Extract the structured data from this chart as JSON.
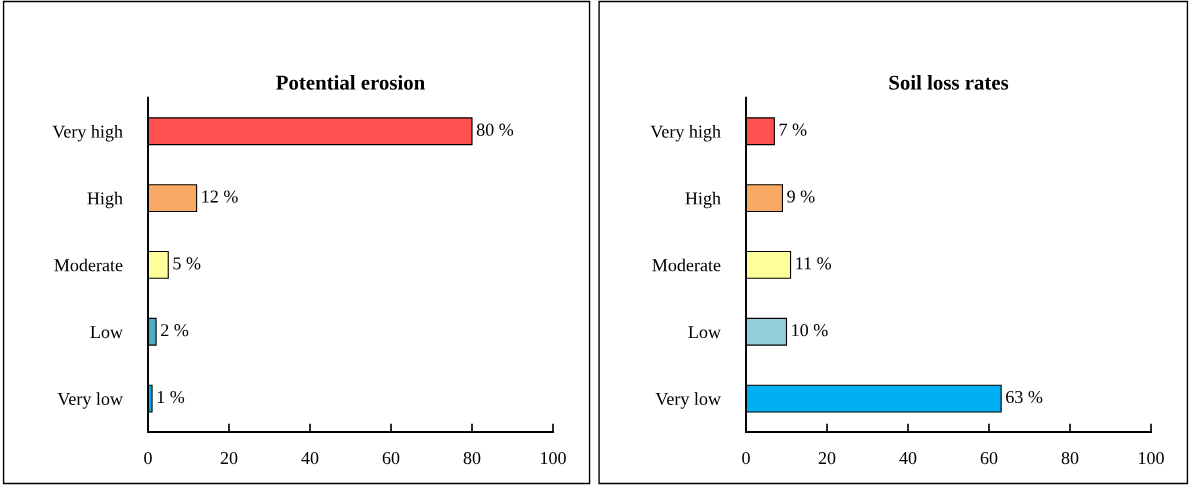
{
  "chart_data": [
    {
      "type": "bar",
      "orientation": "horizontal",
      "title": "Potential erosion",
      "categories": [
        "Very high",
        "High",
        "Moderate",
        "Low",
        "Very low"
      ],
      "values": [
        80,
        12,
        5,
        2,
        1
      ],
      "colors": [
        "#ff5050",
        "#f8a964",
        "#ffff99",
        "#4bacc6",
        "#00b0f0"
      ],
      "value_labels": [
        "80 %",
        "12 %",
        "5 %",
        "2 %",
        "1 %"
      ],
      "xlim": [
        0,
        100
      ],
      "xticks": [
        0,
        20,
        40,
        60,
        80,
        100
      ]
    },
    {
      "type": "bar",
      "orientation": "horizontal",
      "title": "Soil loss rates",
      "categories": [
        "Very high",
        "High",
        "Moderate",
        "Low",
        "Very low"
      ],
      "values": [
        7,
        9,
        11,
        10,
        63
      ],
      "colors": [
        "#ff5050",
        "#f8a964",
        "#ffff99",
        "#92cddc",
        "#00b0f0"
      ],
      "value_labels": [
        "7 %",
        "9 %",
        "11 %",
        "10 %",
        "63 %"
      ],
      "xlim": [
        0,
        100
      ],
      "xticks": [
        0,
        20,
        40,
        60,
        80,
        100
      ]
    }
  ]
}
